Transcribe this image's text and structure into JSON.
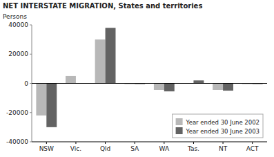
{
  "chart_data": {
    "type": "bar",
    "title": "NET INTERSTATE MIGRATION, States and territories",
    "ylabel": "Persons",
    "categories": [
      "NSW",
      "Vic.",
      "Qld",
      "SA",
      "WA",
      "Tas.",
      "NT",
      "ACT"
    ],
    "series": [
      {
        "name": "Year ended 30 June 2002",
        "color": "#b8b8b8",
        "values": [
          -22000,
          5000,
          30000,
          -500,
          -4500,
          0,
          -4500,
          -500
        ]
      },
      {
        "name": "Year ended 30 June 2003",
        "color": "#636363",
        "values": [
          -30000,
          0,
          38000,
          -500,
          -5500,
          2000,
          -5000,
          -500
        ]
      }
    ],
    "ylim": [
      -40000,
      40000
    ],
    "yticks": [
      -40000,
      -20000,
      0,
      20000,
      40000
    ],
    "grid": false,
    "legend": "lower right"
  }
}
